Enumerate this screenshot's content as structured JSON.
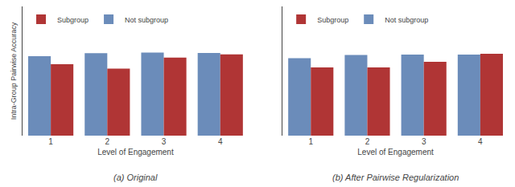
{
  "chart_data": [
    {
      "type": "bar",
      "title": "(a) Original",
      "xlabel": "Level of Engagement",
      "ylabel": "Intra-Group Pairwise Accuracy",
      "categories": [
        "1",
        "2",
        "3",
        "4"
      ],
      "series": [
        {
          "name": "Not subgroup",
          "color": "#6b8cba",
          "values": [
            0.645,
            0.67,
            0.675,
            0.672
          ]
        },
        {
          "name": "Subgroup",
          "color": "#b03535",
          "values": [
            0.58,
            0.545,
            0.635,
            0.66
          ]
        }
      ],
      "ylim": [
        0.0,
        1.05
      ],
      "yticks": [],
      "grid": false,
      "legend": "upper left",
      "tick_labels": "x"
    },
    {
      "type": "bar",
      "title": "(b) After Pairwise Regularization",
      "xlabel": "Level of Engagement",
      "categories": [
        "1",
        "2",
        "3",
        "4"
      ],
      "series": [
        {
          "name": "Not subgroup",
          "color": "#6b8cba",
          "values": [
            0.63,
            0.655,
            0.658,
            0.658
          ]
        },
        {
          "name": "Subgroup",
          "color": "#b03535",
          "values": [
            0.555,
            0.555,
            0.6,
            0.665
          ]
        }
      ],
      "ylim": [
        0.0,
        1.05
      ],
      "yticks": [],
      "grid": false,
      "legend": "upper left",
      "tick_labels": "x"
    }
  ]
}
